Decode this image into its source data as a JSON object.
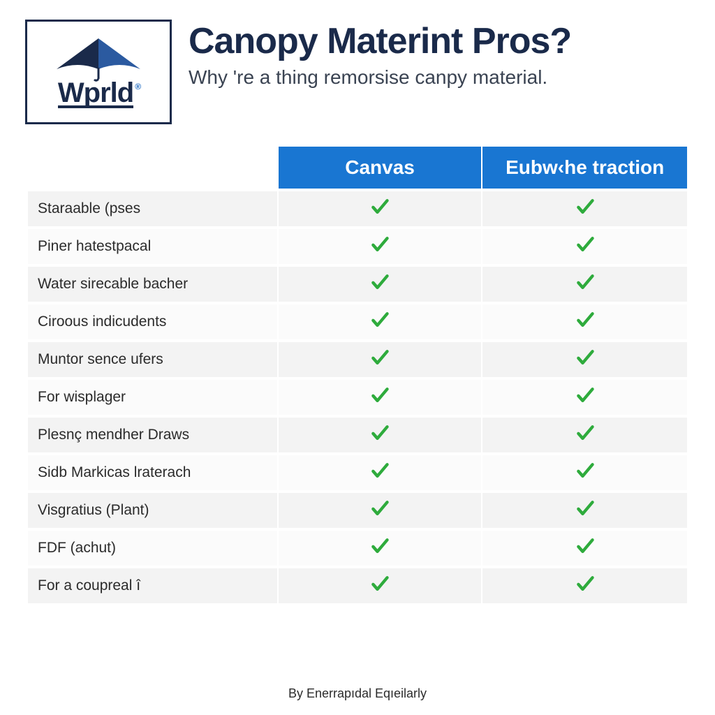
{
  "logo": {
    "name": "Wprld",
    "canopy_dark": "#1a2a4a",
    "canopy_mid": "#2b5aa0",
    "border_color": "#1a2a4a"
  },
  "title": "Canopy Materint Pros?",
  "subtitle": "Why 're a thing remorsise canpy material.",
  "table": {
    "type": "table",
    "header_bg": "#1976d2",
    "header_fg": "#ffffff",
    "row_bg_odd": "#f3f3f3",
    "row_bg_even": "#fbfbfb",
    "check_color": "#2eab3c",
    "columns": [
      "",
      "Canvas",
      "Eubw‹he traction"
    ],
    "rows": [
      {
        "feature": "Staraable (pses",
        "c1": true,
        "c2": true
      },
      {
        "feature": "Piner hatestpacal",
        "c1": true,
        "c2": true
      },
      {
        "feature": "Water sirecable bacher",
        "c1": true,
        "c2": true
      },
      {
        "feature": "Ciroous indicudents",
        "c1": true,
        "c2": true
      },
      {
        "feature": "Muntor sence ufers",
        "c1": true,
        "c2": true
      },
      {
        "feature": "For wisplager",
        "c1": true,
        "c2": true
      },
      {
        "feature": "Plesnç mendher Draws",
        "c1": true,
        "c2": true
      },
      {
        "feature": "Sidb Markicas lraterach",
        "c1": true,
        "c2": true
      },
      {
        "feature": "Visgratius (Plant)",
        "c1": true,
        "c2": true
      },
      {
        "feature": "FDF (achut)",
        "c1": true,
        "c2": true
      },
      {
        "feature": "For a coupreal î",
        "c1": true,
        "c2": true
      }
    ]
  },
  "footer": "By Enerrapıdal Eqıeilarly"
}
